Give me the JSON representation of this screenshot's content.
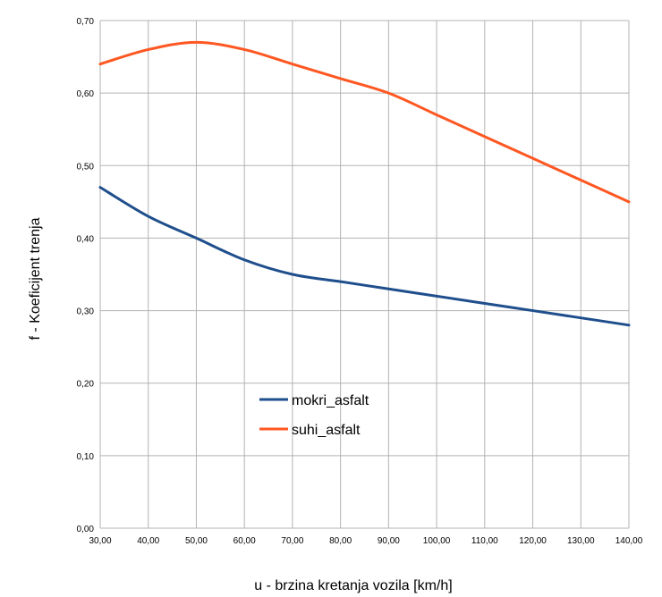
{
  "chart_data": {
    "type": "line",
    "xlabel": "u - brzina kretanja vozila [km/h]",
    "ylabel": "f - Koeficijent trenja",
    "x": [
      30,
      40,
      50,
      60,
      70,
      80,
      90,
      100,
      110,
      120,
      130,
      140
    ],
    "x_tick_labels": [
      "30,00",
      "40,00",
      "50,00",
      "60,00",
      "70,00",
      "80,00",
      "90,00",
      "100,00",
      "110,00",
      "120,00",
      "130,00",
      "140,00"
    ],
    "y_tick_labels": [
      "0,00",
      "0,10",
      "0,20",
      "0,30",
      "0,40",
      "0,50",
      "0,60",
      "0,70"
    ],
    "xlim": [
      30,
      140
    ],
    "ylim": [
      0,
      0.7
    ],
    "y_ticks": [
      0,
      0.1,
      0.2,
      0.3,
      0.4,
      0.5,
      0.6,
      0.7
    ],
    "grid": true,
    "legend_position": "lower-center",
    "series": [
      {
        "name": "mokri_asfalt",
        "color": "#1f4e8c",
        "values": [
          0.47,
          0.43,
          0.4,
          0.37,
          0.35,
          0.34,
          0.33,
          0.32,
          0.31,
          0.3,
          0.29,
          0.28
        ]
      },
      {
        "name": "suhi_asfalt",
        "color": "#ff5722",
        "values": [
          0.64,
          0.66,
          0.67,
          0.66,
          0.64,
          0.62,
          0.6,
          0.57,
          0.54,
          0.51,
          0.48,
          0.45
        ]
      }
    ]
  }
}
